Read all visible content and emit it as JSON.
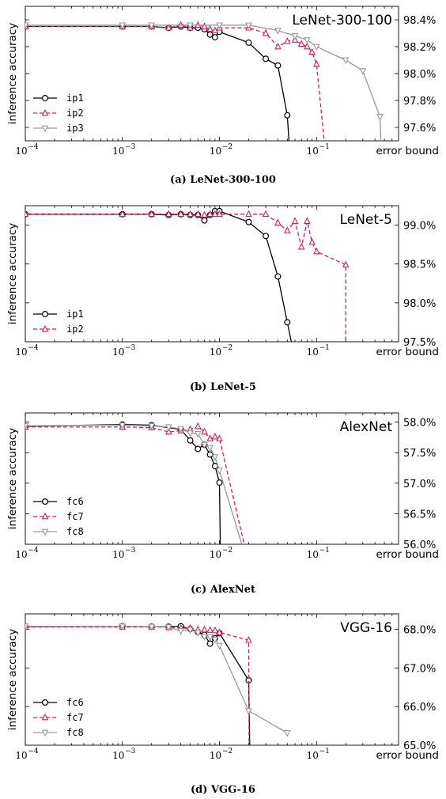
{
  "colors": {
    "series1": "#000000",
    "series2": "#d6205a",
    "series3": "#999999"
  },
  "chart_data": [
    {
      "type": "line",
      "title": "LeNet-300-100",
      "caption": "(a) LeNet-300-100",
      "xlabel": "error bound",
      "ylabel": "inference accuracy",
      "xscale": "log",
      "xlim": [
        0.0001,
        0.7
      ],
      "ylim": [
        97.5,
        98.5
      ],
      "xticks": [
        0.0001,
        0.001,
        0.01,
        0.1
      ],
      "xtick_labels": [
        [
          "10",
          "−4"
        ],
        [
          "10",
          "−3"
        ],
        [
          "10",
          "−2"
        ],
        [
          "10",
          "−1"
        ]
      ],
      "yticks": [
        97.6,
        97.8,
        98.0,
        98.2,
        98.4
      ],
      "ytick_labels": [
        "97.6%",
        "97.8%",
        "98.0%",
        "98.2%",
        "98.4%"
      ],
      "legend_position": "lower-left",
      "series": [
        {
          "name": "ip1",
          "style": "solid",
          "marker": "circle",
          "color": "#000000",
          "x": [
            0.0001,
            0.001,
            0.002,
            0.003,
            0.004,
            0.005,
            0.006,
            0.007,
            0.008,
            0.009,
            0.01,
            0.02,
            0.03,
            0.04,
            0.05,
            0.052
          ],
          "y": [
            98.35,
            98.35,
            98.35,
            98.34,
            98.35,
            98.34,
            98.34,
            98.33,
            98.29,
            98.27,
            98.31,
            98.23,
            98.11,
            98.06,
            97.69,
            97.5
          ]
        },
        {
          "name": "ip2",
          "style": "dashed",
          "marker": "triangle-up",
          "color": "#d6205a",
          "x": [
            0.0001,
            0.001,
            0.002,
            0.003,
            0.004,
            0.005,
            0.006,
            0.007,
            0.008,
            0.009,
            0.01,
            0.02,
            0.03,
            0.04,
            0.05,
            0.06,
            0.07,
            0.08,
            0.09,
            0.1,
            0.12
          ],
          "y": [
            98.35,
            98.35,
            98.35,
            98.34,
            98.36,
            98.34,
            98.36,
            98.35,
            98.33,
            98.32,
            98.34,
            98.34,
            98.3,
            98.2,
            98.24,
            98.25,
            98.22,
            98.2,
            98.16,
            98.07,
            97.5
          ]
        },
        {
          "name": "ip3",
          "style": "solid",
          "marker": "triangle-down",
          "color": "#999999",
          "x": [
            0.0001,
            0.001,
            0.002,
            0.005,
            0.01,
            0.02,
            0.04,
            0.06,
            0.08,
            0.1,
            0.2,
            0.3,
            0.45,
            0.46
          ],
          "y": [
            98.36,
            98.36,
            98.36,
            98.36,
            98.36,
            98.36,
            98.32,
            98.28,
            98.25,
            98.2,
            98.1,
            98.02,
            97.68,
            97.5
          ]
        }
      ]
    },
    {
      "type": "line",
      "title": "LeNet-5",
      "caption": "(b) LeNet-5",
      "xlabel": "error bound",
      "ylabel": "inference accuracy",
      "xscale": "log",
      "xlim": [
        0.0001,
        0.7
      ],
      "ylim": [
        97.5,
        99.25
      ],
      "xticks": [
        0.0001,
        0.001,
        0.01,
        0.1
      ],
      "xtick_labels": [
        [
          "10",
          "−4"
        ],
        [
          "10",
          "−3"
        ],
        [
          "10",
          "−2"
        ],
        [
          "10",
          "−1"
        ]
      ],
      "yticks": [
        97.5,
        98.0,
        98.5,
        99.0
      ],
      "ytick_labels": [
        "97.5%",
        "98.0%",
        "98.5%",
        "99.0%"
      ],
      "legend_position": "lower-left",
      "series": [
        {
          "name": "ip1",
          "style": "solid",
          "marker": "circle",
          "color": "#000000",
          "x": [
            0.0001,
            0.001,
            0.002,
            0.003,
            0.004,
            0.005,
            0.006,
            0.007,
            0.008,
            0.009,
            0.01,
            0.02,
            0.03,
            0.04,
            0.05,
            0.055
          ],
          "y": [
            99.14,
            99.14,
            99.14,
            99.13,
            99.14,
            99.13,
            99.13,
            99.06,
            99.13,
            99.18,
            99.18,
            99.04,
            98.86,
            98.34,
            97.75,
            97.5
          ]
        },
        {
          "name": "ip2",
          "style": "dashed",
          "marker": "triangle-up",
          "color": "#d6205a",
          "x": [
            0.0001,
            0.001,
            0.002,
            0.003,
            0.004,
            0.005,
            0.006,
            0.007,
            0.008,
            0.009,
            0.01,
            0.02,
            0.03,
            0.04,
            0.05,
            0.06,
            0.07,
            0.08,
            0.09,
            0.1,
            0.2,
            0.2
          ],
          "y": [
            99.14,
            99.14,
            99.14,
            99.14,
            99.14,
            99.14,
            99.14,
            99.13,
            99.14,
            99.14,
            99.14,
            99.14,
            99.14,
            99.03,
            98.93,
            99.05,
            98.72,
            99.05,
            98.78,
            98.66,
            98.49,
            97.5
          ]
        }
      ]
    },
    {
      "type": "line",
      "title": "AlexNet",
      "caption": "(c) AlexNet",
      "xlabel": "error bound",
      "ylabel": "inference accuracy",
      "xscale": "log",
      "xlim": [
        0.0001,
        0.7
      ],
      "ylim": [
        56.0,
        58.15
      ],
      "xticks": [
        0.0001,
        0.001,
        0.01,
        0.1
      ],
      "xtick_labels": [
        [
          "10",
          "−4"
        ],
        [
          "10",
          "−3"
        ],
        [
          "10",
          "−2"
        ],
        [
          "10",
          "−1"
        ]
      ],
      "yticks": [
        56.0,
        56.5,
        57.0,
        57.5,
        58.0
      ],
      "ytick_labels": [
        "56.0%",
        "56.5%",
        "57.0%",
        "57.5%",
        "58.0%"
      ],
      "legend_position": "lower-left",
      "series": [
        {
          "name": "fc6",
          "style": "solid",
          "marker": "circle",
          "color": "#000000",
          "x": [
            0.0001,
            0.001,
            0.002,
            0.004,
            0.005,
            0.006,
            0.007,
            0.008,
            0.009,
            0.01,
            0.0102
          ],
          "y": [
            57.93,
            57.96,
            57.95,
            57.88,
            57.7,
            57.56,
            57.63,
            57.47,
            57.28,
            57.01,
            56.0
          ]
        },
        {
          "name": "fc7",
          "style": "dashed",
          "marker": "triangle-up",
          "color": "#d6205a",
          "x": [
            0.0001,
            0.001,
            0.002,
            0.003,
            0.004,
            0.005,
            0.006,
            0.007,
            0.008,
            0.009,
            0.01,
            0.018
          ],
          "y": [
            57.92,
            57.92,
            57.91,
            57.84,
            57.86,
            57.88,
            57.93,
            57.84,
            57.73,
            57.76,
            57.73,
            56.0
          ]
        },
        {
          "name": "fc8",
          "style": "solid",
          "marker": "triangle-down",
          "color": "#999999",
          "x": [
            0.0001,
            0.001,
            0.002,
            0.003,
            0.004,
            0.005,
            0.006,
            0.007,
            0.008,
            0.009,
            0.01,
            0.017
          ],
          "y": [
            57.94,
            57.95,
            57.94,
            57.92,
            57.89,
            57.82,
            57.81,
            57.63,
            57.58,
            57.43,
            57.21,
            56.0
          ]
        }
      ]
    },
    {
      "type": "line",
      "title": "VGG-16",
      "caption": "(d) VGG-16",
      "xlabel": "error bound",
      "ylabel": "inference accuracy",
      "xscale": "log",
      "xlim": [
        0.0001,
        0.7
      ],
      "ylim": [
        65.0,
        68.4
      ],
      "xticks": [
        0.0001,
        0.001,
        0.01,
        0.1
      ],
      "xtick_labels": [
        [
          "10",
          "−4"
        ],
        [
          "10",
          "−3"
        ],
        [
          "10",
          "−2"
        ],
        [
          "10",
          "−1"
        ]
      ],
      "yticks": [
        65.0,
        66.0,
        67.0,
        68.0
      ],
      "ytick_labels": [
        "65.0%",
        "66.0%",
        "67.0%",
        "68.0%"
      ],
      "legend_position": "lower-left",
      "series": [
        {
          "name": "fc6",
          "style": "solid",
          "marker": "circle",
          "color": "#000000",
          "x": [
            0.0001,
            0.001,
            0.002,
            0.003,
            0.004,
            0.005,
            0.006,
            0.007,
            0.008,
            0.009,
            0.01,
            0.02,
            0.0205
          ],
          "y": [
            68.07,
            68.08,
            68.07,
            68.07,
            68.08,
            68.01,
            67.93,
            67.86,
            67.63,
            67.77,
            67.9,
            66.68,
            65.0
          ]
        },
        {
          "name": "fc7",
          "style": "dashed",
          "marker": "triangle-up",
          "color": "#d6205a",
          "x": [
            0.0001,
            0.001,
            0.002,
            0.003,
            0.004,
            0.005,
            0.006,
            0.007,
            0.008,
            0.009,
            0.01,
            0.02,
            0.0202
          ],
          "y": [
            68.06,
            68.06,
            68.06,
            68.05,
            68.03,
            68.03,
            67.99,
            67.99,
            67.98,
            67.97,
            67.92,
            67.72,
            65.0
          ]
        },
        {
          "name": "fc8",
          "style": "solid",
          "marker": "triangle-down",
          "color": "#999999",
          "x": [
            0.0001,
            0.001,
            0.002,
            0.003,
            0.004,
            0.005,
            0.006,
            0.007,
            0.008,
            0.009,
            0.01,
            0.02,
            0.05
          ],
          "y": [
            68.08,
            68.08,
            68.07,
            68.06,
            67.96,
            67.99,
            67.91,
            67.81,
            67.8,
            67.74,
            67.58,
            65.89,
            65.32
          ]
        }
      ]
    }
  ]
}
